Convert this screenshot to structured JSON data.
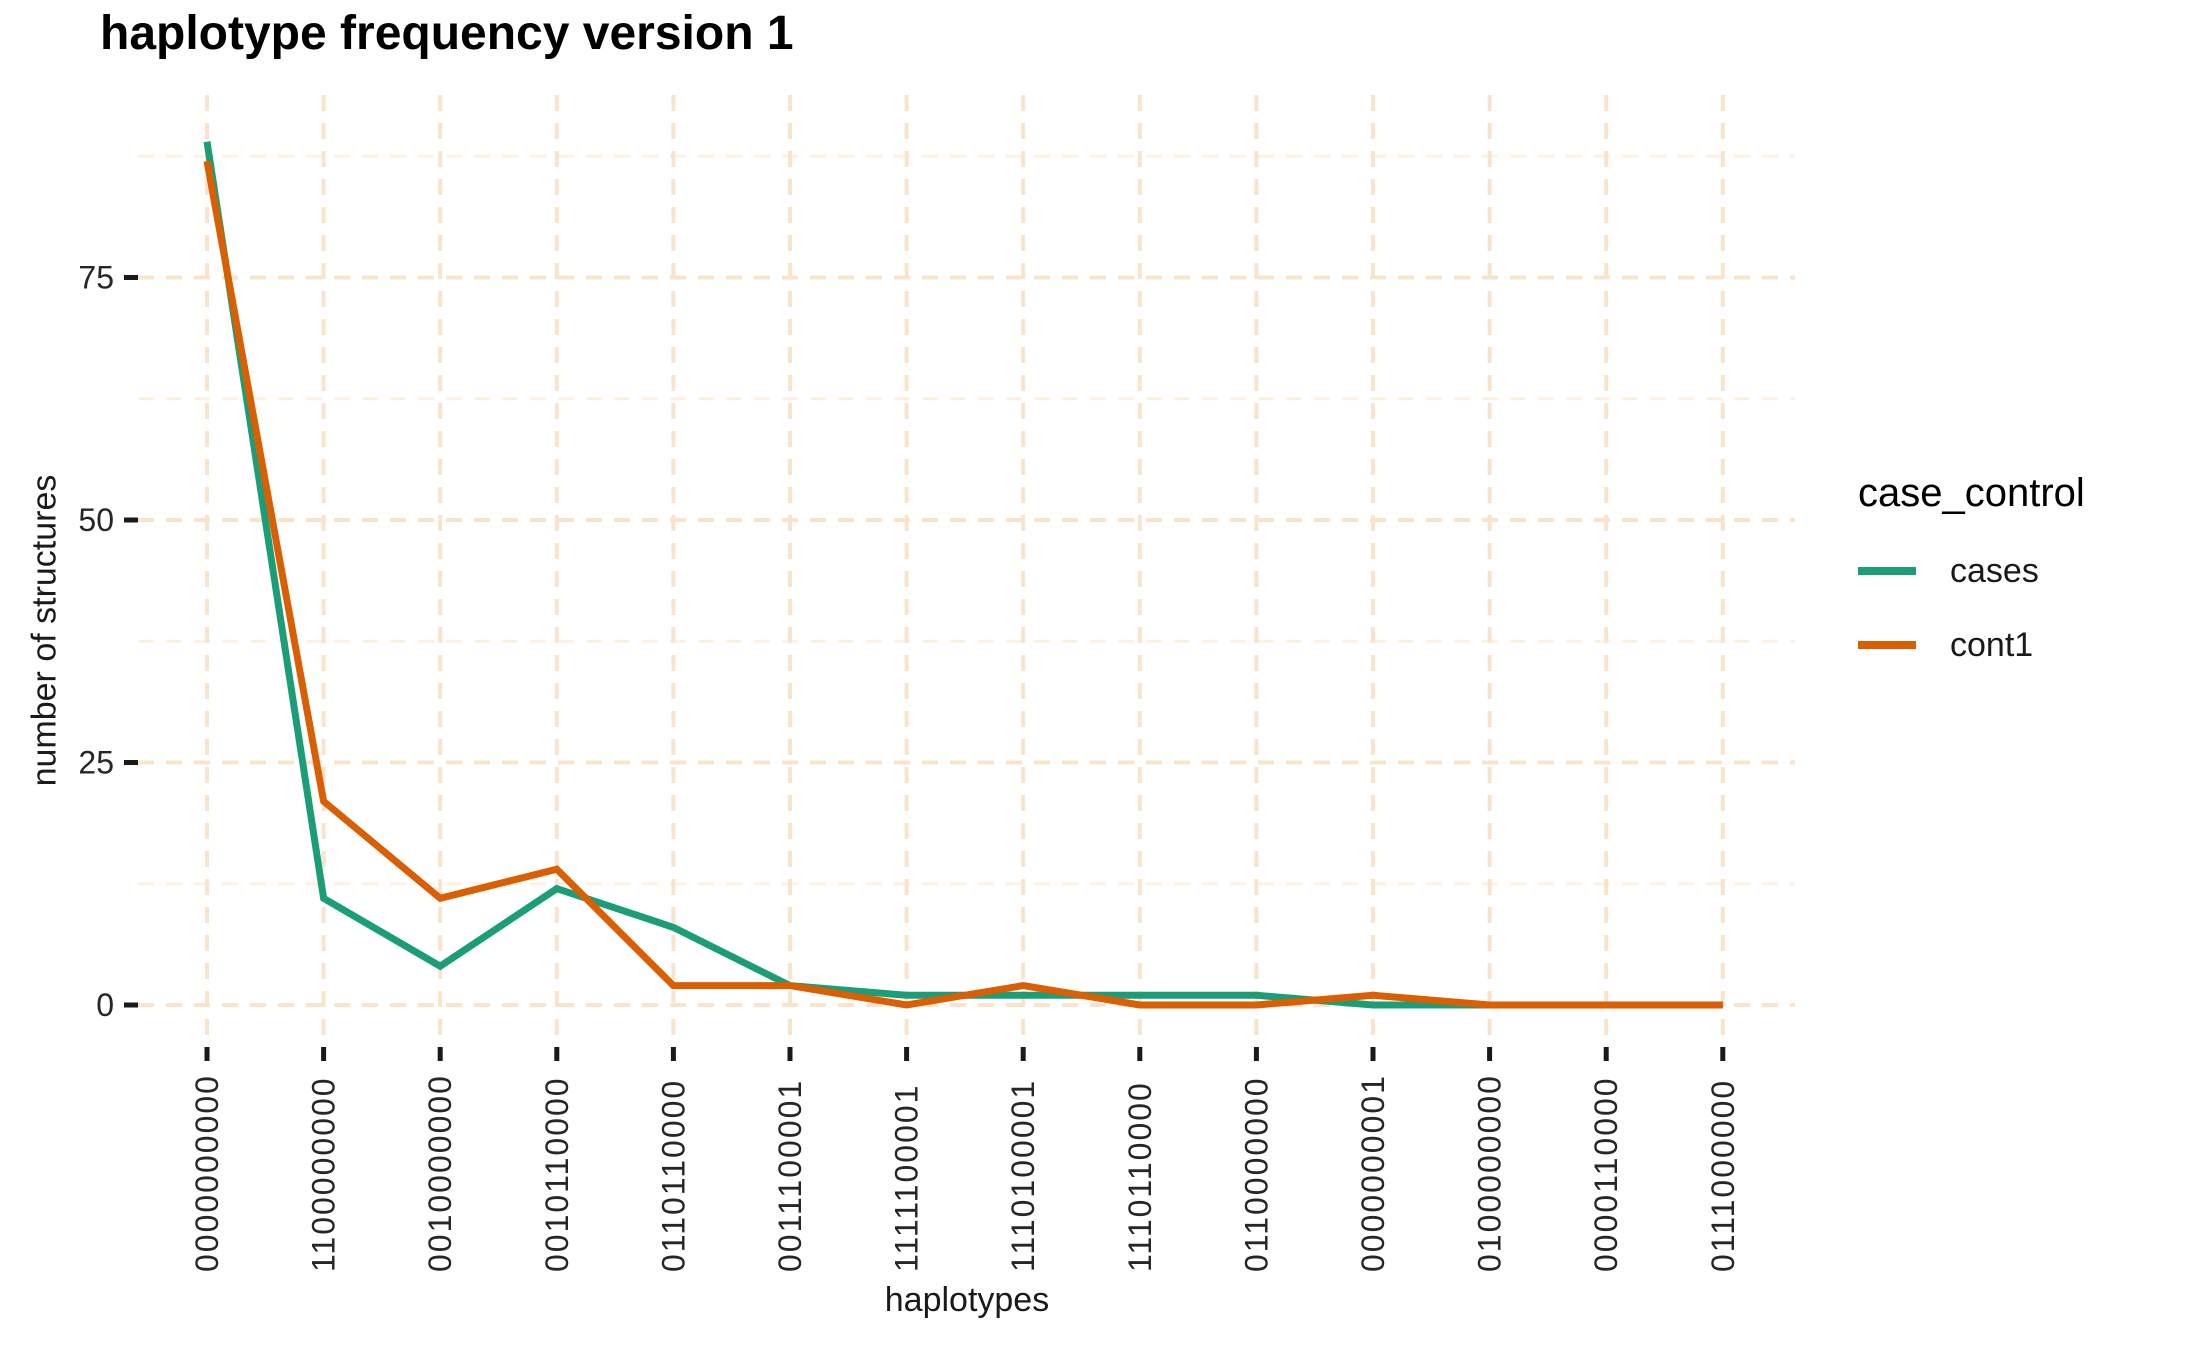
{
  "chart_data": {
    "type": "line",
    "title": "haplotype frequency version 1",
    "xlabel": "haplotypes",
    "ylabel": "number of structures",
    "legend_title": "case_control",
    "legend_position": "right",
    "categories": [
      "0000000000",
      "1100000000",
      "0010000000",
      "0010110000",
      "0110110000",
      "0011100001",
      "1111100001",
      "1110100001",
      "1110110000",
      "0110000000",
      "0000000001",
      "0100000000",
      "0000110000",
      "0111000000"
    ],
    "series": [
      {
        "name": "cases",
        "color": "#1B9E77",
        "values": [
          89,
          11,
          4,
          12,
          8,
          2,
          1,
          1,
          1,
          1,
          0,
          0,
          0,
          0
        ]
      },
      {
        "name": "cont1",
        "color": "#D95F02",
        "values": [
          87,
          21,
          11,
          14,
          2,
          2,
          0,
          2,
          0,
          0,
          1,
          0,
          0,
          0
        ]
      }
    ],
    "yticks": [
      0,
      25,
      50,
      75
    ],
    "ylim": [
      -4,
      94
    ],
    "grid": {
      "style": "dashed",
      "major_color": "#FAE3CB",
      "minor_color": "#FDF1E2",
      "minor_yticks": [
        12.5,
        37.5,
        62.5,
        87.5
      ]
    },
    "tick_color": "#1a1a1a",
    "axis_text_color": "#262626"
  }
}
